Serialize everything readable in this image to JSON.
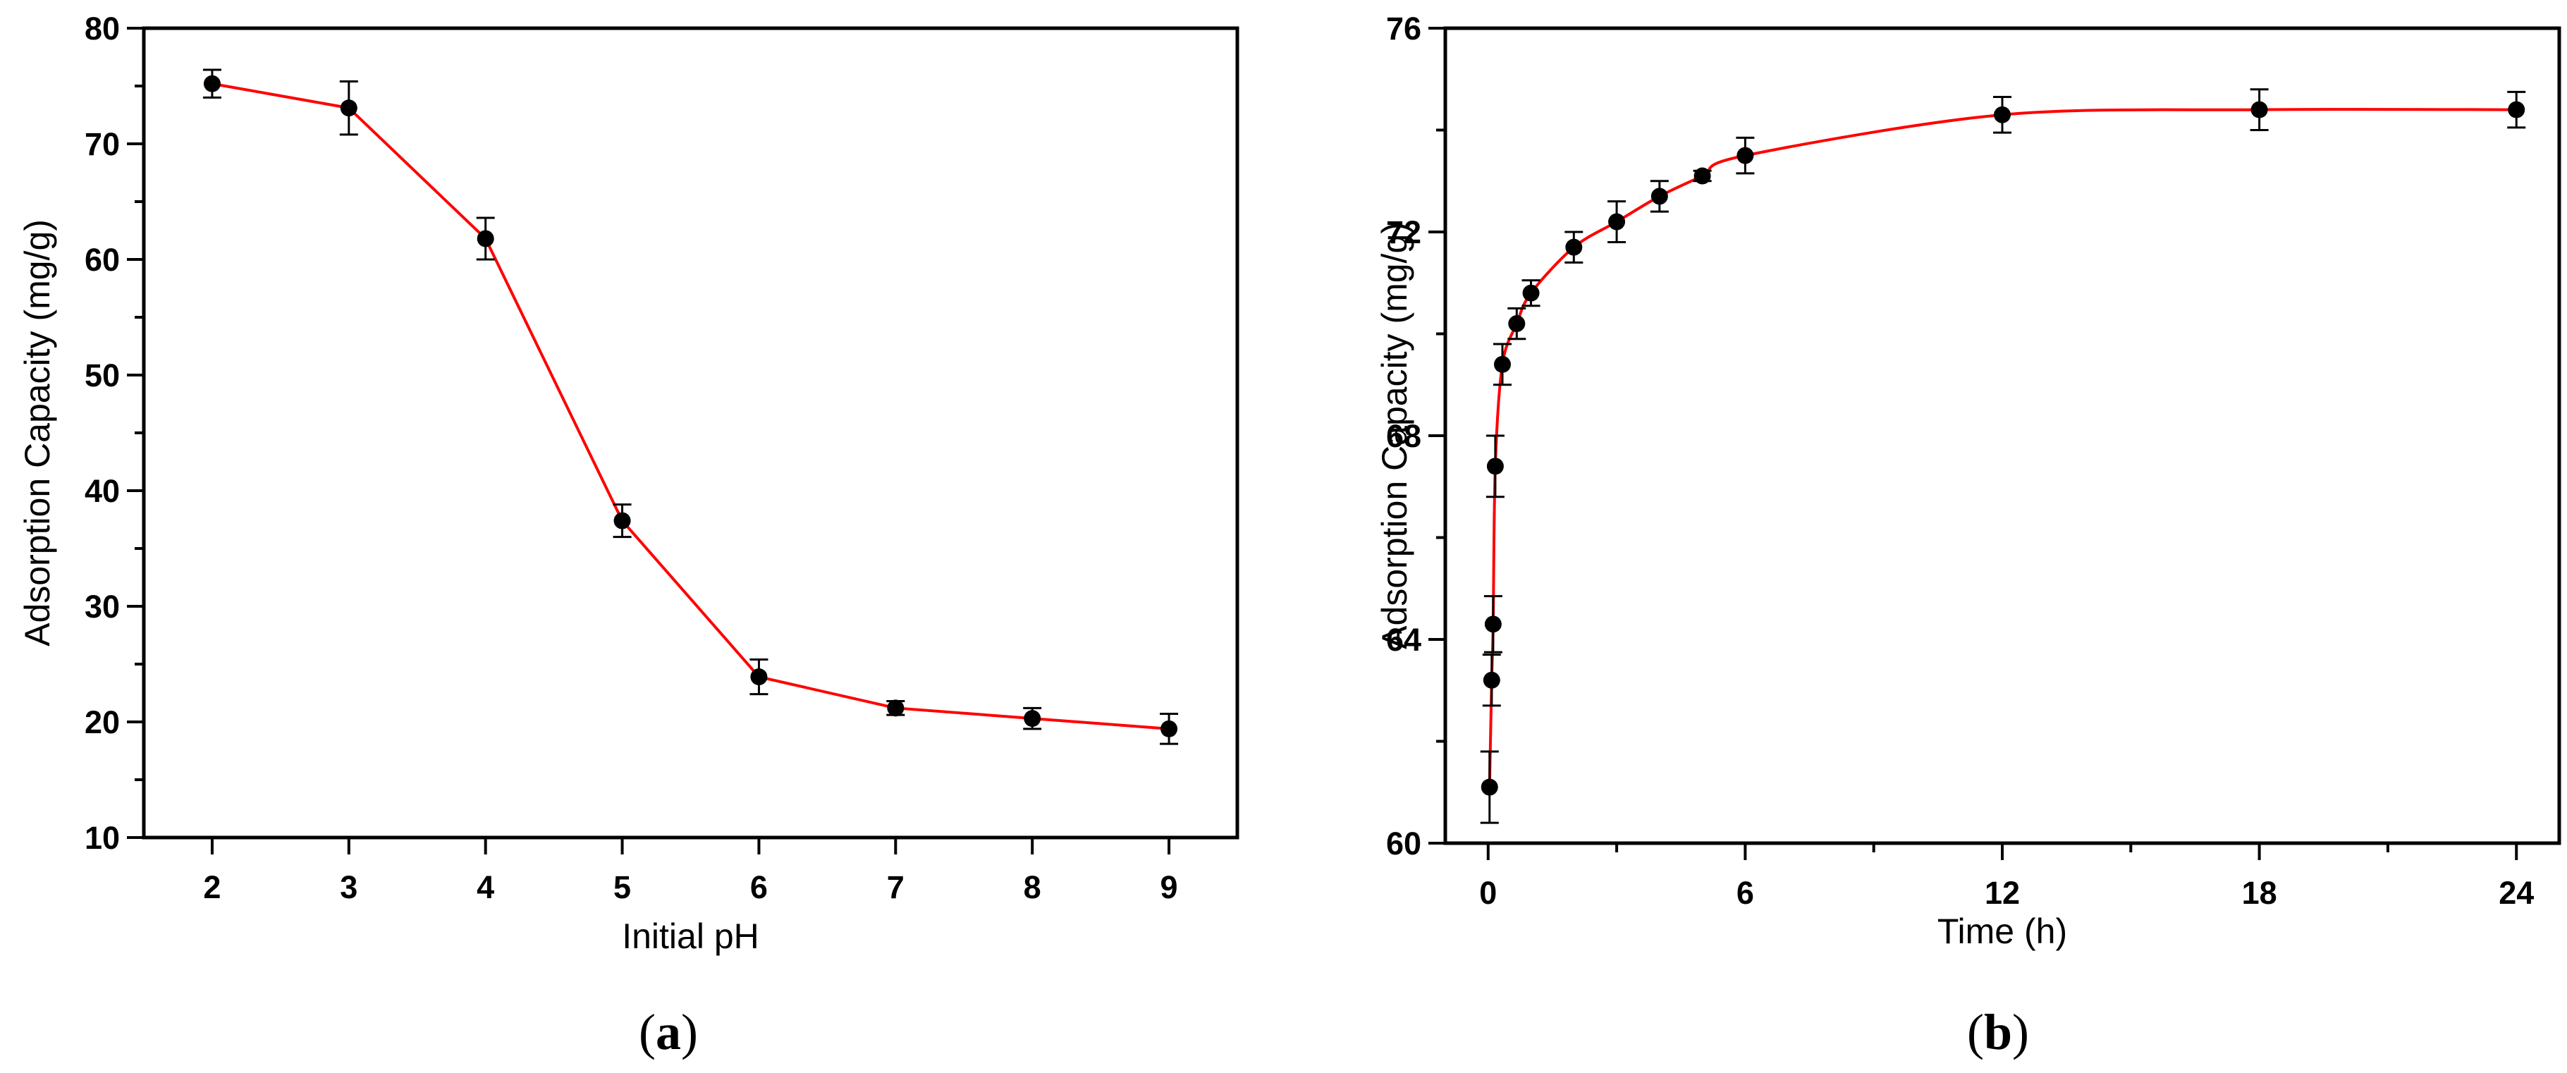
{
  "colors": {
    "line": "#ff0000",
    "marker": "#000000",
    "axis": "#000000"
  },
  "panels": [
    {
      "label_open": "(",
      "label_letter": "a",
      "label_close": ")",
      "chart_data": {
        "type": "line",
        "title": "",
        "xlabel": "Initial pH",
        "ylabel": "Adsorption Capacity (mg/g)",
        "xlim": [
          1.5,
          9.5
        ],
        "ylim": [
          10,
          80
        ],
        "xticks": [
          2,
          3,
          4,
          5,
          6,
          7,
          8,
          9
        ],
        "yticks": [
          10,
          20,
          30,
          40,
          50,
          60,
          70,
          80
        ],
        "yminor": [
          15,
          25,
          35,
          45,
          55,
          65,
          75
        ],
        "series": [
          {
            "name": "Adsorption Capacity",
            "x": [
              2,
              3,
              4,
              5,
              6,
              7,
              8,
              9
            ],
            "y": [
              75.2,
              73.1,
              61.8,
              37.4,
              23.9,
              21.2,
              20.3,
              19.4
            ],
            "err": [
              1.2,
              2.3,
              1.8,
              1.4,
              1.5,
              0.6,
              0.9,
              1.3
            ]
          }
        ],
        "grid": false
      }
    },
    {
      "label_open": "(",
      "label_letter": "b",
      "label_close": ")",
      "chart_data": {
        "type": "line",
        "title": "",
        "xlabel": "Time (h)",
        "ylabel": "Adsorption Capacity (mg/g)",
        "xlim": [
          -1,
          25
        ],
        "ylim": [
          60,
          76
        ],
        "xticks": [
          0,
          6,
          12,
          18,
          24
        ],
        "xminor": [
          3,
          9,
          15,
          21
        ],
        "yticks": [
          60,
          64,
          68,
          72,
          76
        ],
        "yminor": [
          62,
          66,
          70,
          74
        ],
        "series": [
          {
            "name": "Adsorption Capacity",
            "x": [
              0.033,
              0.083,
              0.117,
              0.167,
              0.333,
              0.667,
              1,
              2,
              3,
              4,
              5,
              6,
              12,
              18,
              24
            ],
            "y": [
              61.1,
              63.2,
              64.3,
              67.4,
              69.4,
              70.2,
              70.8,
              71.7,
              72.2,
              72.7,
              73.1,
              73.5,
              74.3,
              74.4,
              74.4
            ],
            "err": [
              0.7,
              0.5,
              0.55,
              0.6,
              0.4,
              0.3,
              0.25,
              0.3,
              0.4,
              0.3,
              0.1,
              0.35,
              0.35,
              0.4,
              0.35
            ]
          }
        ],
        "grid": false
      }
    }
  ]
}
